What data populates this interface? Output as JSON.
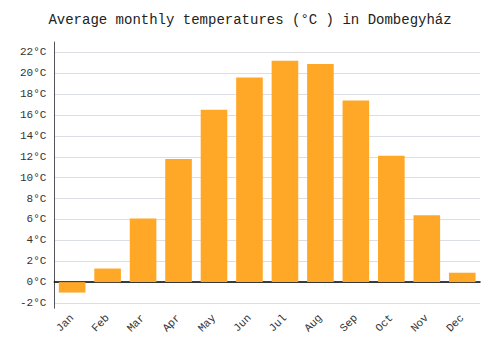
{
  "chart_data": {
    "type": "bar",
    "title": "Average monthly temperatures (°C ) in Dombegyház",
    "categories": [
      "Jan",
      "Feb",
      "Mar",
      "Apr",
      "May",
      "Jun",
      "Jul",
      "Aug",
      "Sep",
      "Oct",
      "Nov",
      "Dec"
    ],
    "values": [
      -1.0,
      1.3,
      6.1,
      11.8,
      16.5,
      19.6,
      21.2,
      20.9,
      17.4,
      12.1,
      6.4,
      0.9
    ],
    "color": "#FFA726",
    "ylim": [
      -2.5,
      23
    ],
    "yticks": [
      {
        "value": -2,
        "label": "-2°C"
      },
      {
        "value": 0,
        "label": "0°C"
      },
      {
        "value": 2,
        "label": "2°C"
      },
      {
        "value": 4,
        "label": "4°C"
      },
      {
        "value": 6,
        "label": "6°C"
      },
      {
        "value": 8,
        "label": "8°C"
      },
      {
        "value": 10,
        "label": "10°C"
      },
      {
        "value": 12,
        "label": "12°C"
      },
      {
        "value": 14,
        "label": "14°C"
      },
      {
        "value": 16,
        "label": "16°C"
      },
      {
        "value": 18,
        "label": "18°C"
      },
      {
        "value": 20,
        "label": "20°C"
      },
      {
        "value": 22,
        "label": "22°C"
      }
    ],
    "grid": true
  }
}
